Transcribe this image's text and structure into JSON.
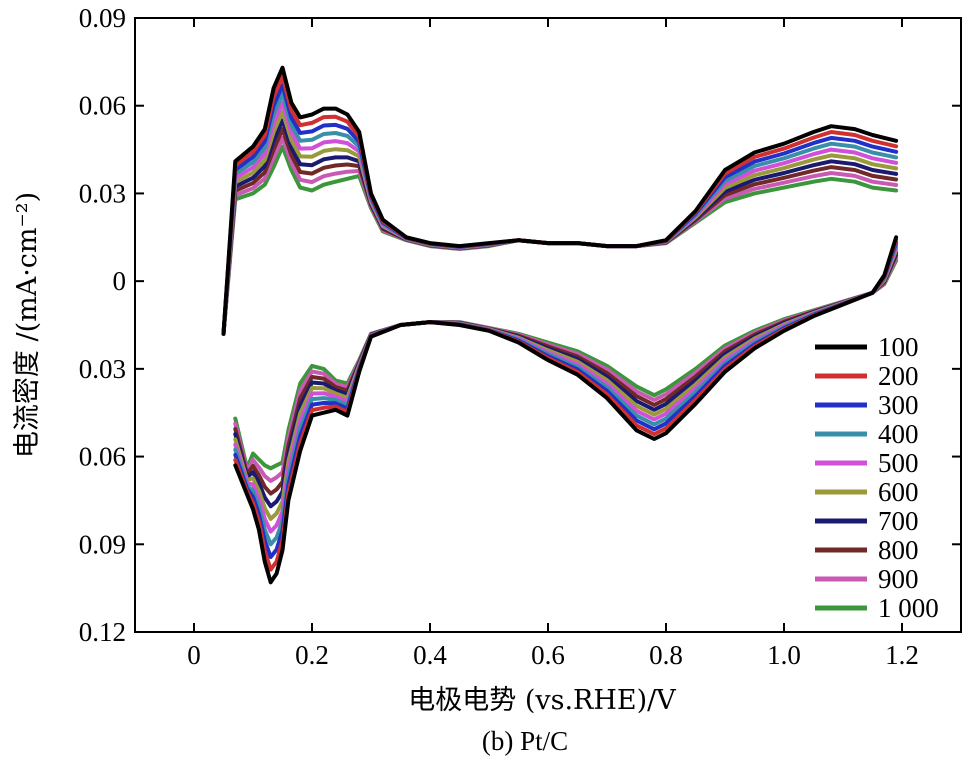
{
  "chart_data": {
    "type": "line",
    "xlabel": "电极电势 (vs.RHE)/V",
    "ylabel": "电流密度 /(mA·cm⁻²)",
    "caption": "(b) Pt/C",
    "xlim": [
      -0.1,
      1.3
    ],
    "ylim": [
      -0.12,
      0.09
    ],
    "x_ticks": [
      0,
      0.2,
      0.4,
      0.6,
      0.8,
      1.0,
      1.2
    ],
    "x_tick_labels": [
      "0",
      "0.2",
      "0.4",
      "0.6",
      "0.8",
      "1.0",
      "1.2"
    ],
    "y_ticks": [
      0.09,
      0.06,
      0.03,
      0,
      -0.03,
      -0.06,
      -0.09,
      -0.12
    ],
    "y_tick_labels": [
      "0.09",
      "0.06",
      "0.03",
      "0",
      "0.03",
      "0.06",
      "0.09",
      "0.12"
    ],
    "grid": false,
    "legend_position": "bottom-right",
    "anodic_start": [
      0.05,
      -0.018
    ],
    "anodic_x": [
      0.07,
      0.1,
      0.12,
      0.135,
      0.15,
      0.165,
      0.18,
      0.2,
      0.22,
      0.24,
      0.26,
      0.28,
      0.3,
      0.32,
      0.36,
      0.4,
      0.45,
      0.5,
      0.55,
      0.6,
      0.65,
      0.7,
      0.75,
      0.8,
      0.85,
      0.9,
      0.95,
      1.0,
      1.05,
      1.08,
      1.12,
      1.15,
      1.19
    ],
    "anodic_y_first": [
      0.041,
      0.046,
      0.052,
      0.066,
      0.073,
      0.061,
      0.056,
      0.057,
      0.059,
      0.059,
      0.057,
      0.051,
      0.03,
      0.021,
      0.015,
      0.013,
      0.012,
      0.013,
      0.014,
      0.013,
      0.013,
      0.012,
      0.012,
      0.014,
      0.024,
      0.038,
      0.044,
      0.047,
      0.051,
      0.053,
      0.052,
      0.05,
      0.048
    ],
    "anodic_y_last": [
      0.028,
      0.03,
      0.033,
      0.039,
      0.046,
      0.038,
      0.032,
      0.031,
      0.033,
      0.034,
      0.035,
      0.036,
      0.025,
      0.017,
      0.014,
      0.012,
      0.011,
      0.012,
      0.014,
      0.013,
      0.013,
      0.012,
      0.012,
      0.013,
      0.02,
      0.027,
      0.03,
      0.032,
      0.034,
      0.035,
      0.034,
      0.032,
      0.031
    ],
    "cathodic_x": [
      1.19,
      1.17,
      1.15,
      1.1,
      1.05,
      1.0,
      0.95,
      0.9,
      0.85,
      0.8,
      0.78,
      0.75,
      0.7,
      0.65,
      0.6,
      0.55,
      0.5,
      0.45,
      0.4,
      0.35,
      0.3,
      0.28,
      0.26,
      0.24,
      0.22,
      0.2,
      0.18,
      0.16,
      0.15,
      0.14,
      0.13,
      0.12,
      0.11,
      0.1,
      0.09,
      0.07
    ],
    "cathodic_y_first": [
      0.015,
      0.002,
      -0.004,
      -0.008,
      -0.012,
      -0.017,
      -0.023,
      -0.031,
      -0.042,
      -0.052,
      -0.054,
      -0.051,
      -0.04,
      -0.032,
      -0.027,
      -0.021,
      -0.017,
      -0.015,
      -0.014,
      -0.015,
      -0.019,
      -0.031,
      -0.046,
      -0.044,
      -0.045,
      -0.046,
      -0.058,
      -0.075,
      -0.092,
      -0.1,
      -0.103,
      -0.096,
      -0.085,
      -0.078,
      -0.073,
      -0.063
    ],
    "cathodic_y_last": [
      0.007,
      -0.001,
      -0.004,
      -0.007,
      -0.01,
      -0.013,
      -0.017,
      -0.022,
      -0.03,
      -0.037,
      -0.039,
      -0.036,
      -0.029,
      -0.024,
      -0.021,
      -0.018,
      -0.016,
      -0.014,
      -0.014,
      -0.015,
      -0.018,
      -0.027,
      -0.035,
      -0.034,
      -0.03,
      -0.029,
      -0.035,
      -0.051,
      -0.062,
      -0.063,
      -0.064,
      -0.063,
      -0.061,
      -0.059,
      -0.064,
      -0.047
    ],
    "series": [
      {
        "name": "100",
        "color": "#000000"
      },
      {
        "name": "200",
        "color": "#d03030"
      },
      {
        "name": "300",
        "color": "#2030c8"
      },
      {
        "name": "400",
        "color": "#3a8fa8"
      },
      {
        "name": "500",
        "color": "#d050d8"
      },
      {
        "name": "600",
        "color": "#9a9a3a"
      },
      {
        "name": "700",
        "color": "#1a1a70"
      },
      {
        "name": "800",
        "color": "#702828"
      },
      {
        "name": "900",
        "color": "#c85ab4"
      },
      {
        "name": "1 000",
        "color": "#3c963c"
      }
    ]
  }
}
